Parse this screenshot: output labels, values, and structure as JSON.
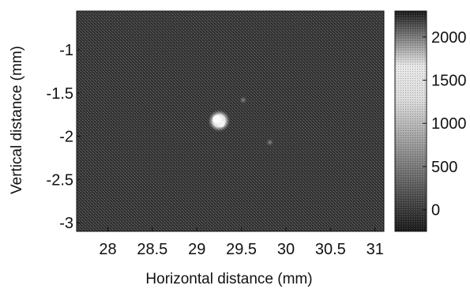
{
  "chart_data": {
    "type": "heatmap",
    "title": "",
    "xlabel": "Horizontal distance (mm)",
    "ylabel": "Vertical distance (mm)",
    "xlim": [
      27.65,
      31.1
    ],
    "ylim": [
      -3.1,
      -0.55
    ],
    "x_ticks": [
      28,
      28.5,
      29,
      29.5,
      30,
      30.5,
      31
    ],
    "x_tick_labels": [
      "28",
      "28.5",
      "29",
      "29.5",
      "30",
      "30.5",
      "31"
    ],
    "y_ticks": [
      -1,
      -1.5,
      -2,
      -2.5,
      -3
    ],
    "y_tick_labels": [
      "-1",
      "-1.5",
      "-2",
      "-2.5",
      "-3"
    ],
    "colorbar": {
      "range": [
        -250,
        2300
      ],
      "ticks": [
        0,
        500,
        1000,
        1500,
        2000
      ],
      "tick_labels": [
        "0",
        "500",
        "1000",
        "1500",
        "2000"
      ]
    },
    "colormap": "gray",
    "background_value": 150,
    "features": [
      {
        "x": 29.25,
        "y": -1.82,
        "peak": 2000,
        "description": "hot-spot"
      },
      {
        "x": 29.52,
        "y": -1.58,
        "peak": 400,
        "description": "faint spot"
      },
      {
        "x": 29.82,
        "y": -2.07,
        "peak": 350,
        "description": "faint spot"
      }
    ],
    "grid": false
  }
}
